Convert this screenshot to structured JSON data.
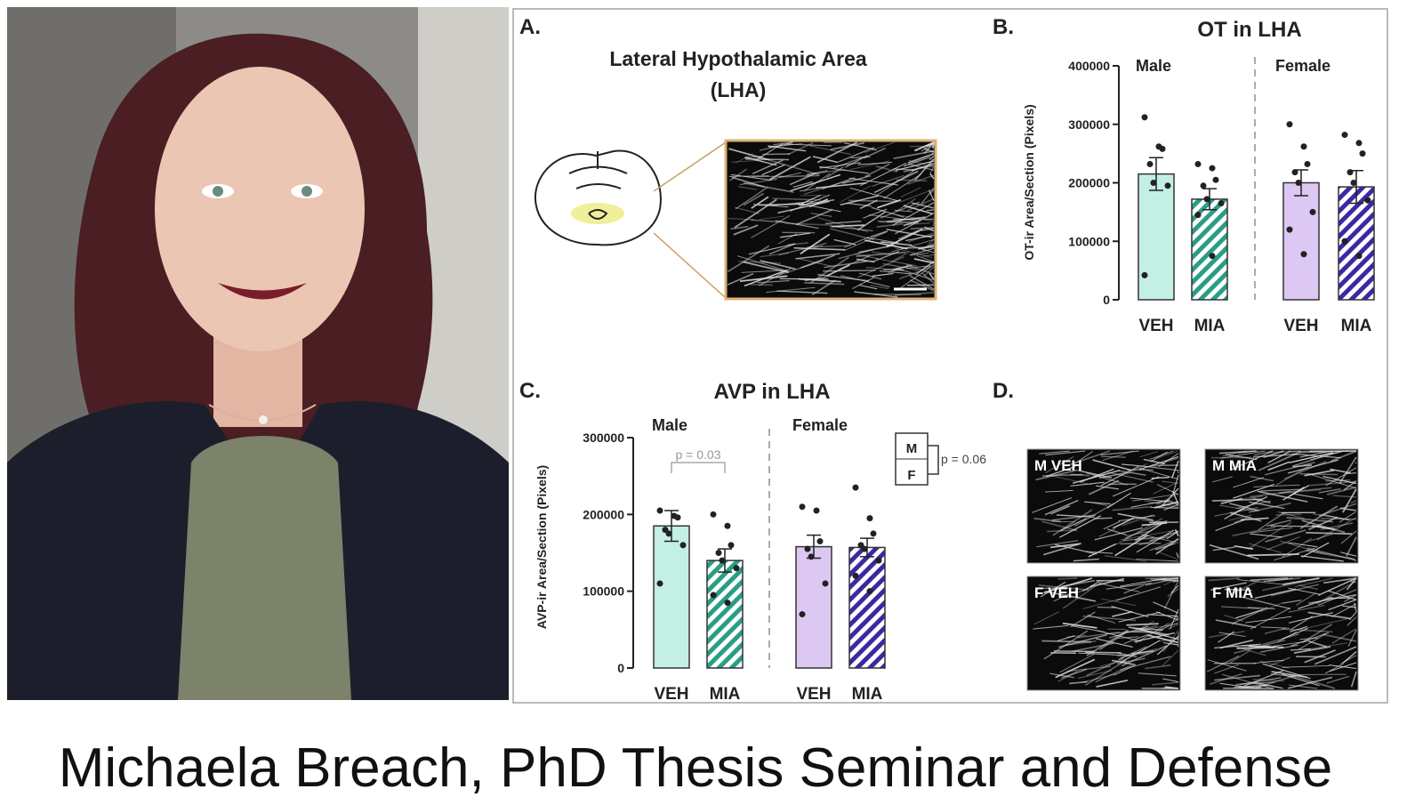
{
  "figure": {
    "panel_a": {
      "label": "A.",
      "title_line1": "Lateral Hypothalamic Area",
      "title_line2": "(LHA)"
    },
    "panel_d": {
      "label": "D.",
      "images": [
        "M VEH",
        "M MIA",
        "F VEH",
        "F MIA"
      ]
    }
  },
  "chart_data": [
    {
      "type": "bar",
      "panel_label": "B.",
      "title": "OT in LHA",
      "y_label": "OT-ir Area/Section (Pixels)",
      "group_labels": [
        "Male",
        "Female"
      ],
      "categories": [
        "VEH",
        "MIA",
        "VEH",
        "MIA"
      ],
      "values": [
        215000,
        172000,
        200000,
        193000
      ],
      "errors": [
        28000,
        18000,
        22000,
        28000
      ],
      "colors": [
        "#c4efe4",
        "#2a9d85",
        "#dcc8f2",
        "#3a2aa0"
      ],
      "hatched": [
        false,
        true,
        false,
        true
      ],
      "points": [
        [
          312000,
          262000,
          258000,
          232000,
          200000,
          195000,
          42000
        ],
        [
          232000,
          225000,
          205000,
          195000,
          172000,
          165000,
          145000,
          75000
        ],
        [
          300000,
          262000,
          232000,
          218000,
          200000,
          150000,
          120000,
          78000
        ],
        [
          282000,
          268000,
          250000,
          218000,
          200000,
          170000,
          100000,
          75000
        ]
      ],
      "ylim": [
        0,
        400000
      ],
      "yticks": [
        0,
        100000,
        200000,
        300000,
        400000
      ]
    },
    {
      "type": "bar",
      "panel_label": "C.",
      "title": "AVP in LHA",
      "y_label": "AVP-ir Area/Section (Pixels)",
      "group_labels": [
        "Male",
        "Female"
      ],
      "categories": [
        "VEH",
        "MIA",
        "VEH",
        "MIA"
      ],
      "values": [
        185000,
        140000,
        158000,
        157000
      ],
      "errors": [
        20000,
        15000,
        15000,
        12000
      ],
      "colors": [
        "#c4efe4",
        "#2a9d85",
        "#dcc8f2",
        "#3a2aa0"
      ],
      "hatched": [
        false,
        true,
        false,
        true
      ],
      "points": [
        [
          205000,
          198000,
          196000,
          180000,
          175000,
          160000,
          110000
        ],
        [
          200000,
          185000,
          160000,
          150000,
          140000,
          130000,
          95000,
          85000
        ],
        [
          210000,
          205000,
          165000,
          155000,
          145000,
          110000,
          70000
        ],
        [
          235000,
          195000,
          175000,
          160000,
          155000,
          140000,
          120000,
          100000
        ]
      ],
      "annotations": [
        "p = 0.03",
        "p = 0.06"
      ],
      "legend_labels": [
        "M",
        "F"
      ],
      "ylim": [
        0,
        300000
      ],
      "yticks": [
        0,
        100000,
        200000,
        300000
      ]
    }
  ],
  "caption": "Michaela Breach, PhD Thesis Seminar and Defense"
}
